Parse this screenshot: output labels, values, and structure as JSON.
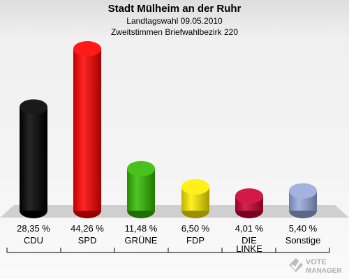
{
  "header": {
    "title": "Stadt Mülheim an der Ruhr",
    "subtitle": "Landtagswahl 09.05.2010",
    "subtitle2": "Zweitstimmen Briefwahlbezirk 220"
  },
  "chart_data": {
    "type": "bar",
    "title": "Stadt Mülheim an der Ruhr",
    "categories": [
      "CDU",
      "SPD",
      "GRÜNE",
      "FDP",
      "DIE LINKE",
      "Sonstige"
    ],
    "category_lines": [
      [
        "CDU"
      ],
      [
        "SPD"
      ],
      [
        "GRÜNE"
      ],
      [
        "FDP"
      ],
      [
        "DIE",
        "LINKE"
      ],
      [
        "Sonstige"
      ]
    ],
    "values": [
      28.35,
      44.26,
      11.48,
      6.5,
      4.01,
      5.4
    ],
    "value_labels": [
      "28,35 %",
      "44,26 %",
      "11,48 %",
      "6,50 %",
      "4,01 %",
      "5,40 %"
    ],
    "colors": [
      "#000000",
      "#ff0000",
      "#33bb00",
      "#ffee00",
      "#cc0033",
      "#99aadd"
    ],
    "ylim": [
      0,
      44.26
    ],
    "grid": false,
    "legend": "none"
  },
  "logo": {
    "line1": "VOTE",
    "line2": "MANAGER",
    "icon": "checkmark-ballot-icon"
  }
}
